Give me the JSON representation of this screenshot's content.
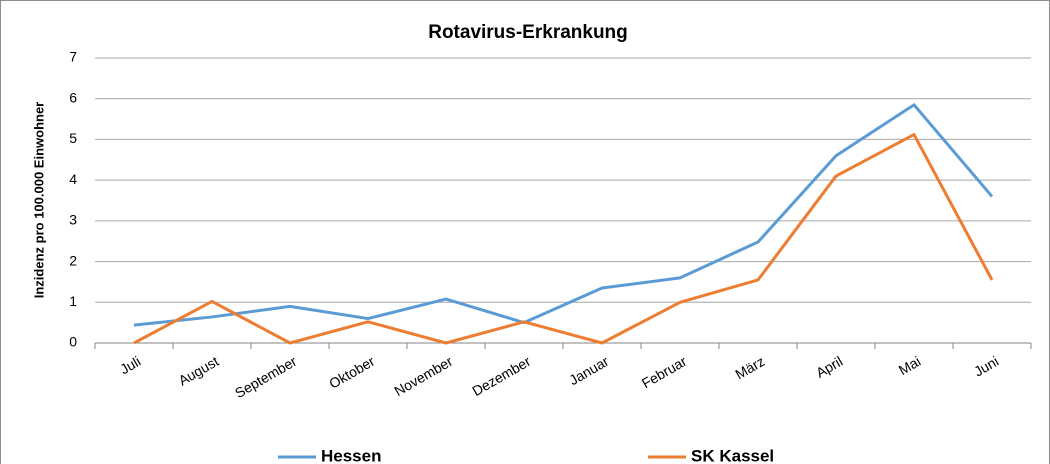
{
  "chart_data": {
    "type": "line",
    "title": "Rotavirus-Erkrankung",
    "ylabel": "Inzidenz pro 100.000 Einwohner",
    "categories": [
      "Juli",
      "August",
      "September",
      "Oktober",
      "November",
      "Dezember",
      "Januar",
      "Februar",
      "März",
      "April",
      "Mai",
      "Juni"
    ],
    "series": [
      {
        "name": "Hessen",
        "color": "#5b9bd5",
        "values": [
          0.44,
          0.64,
          0.9,
          0.6,
          1.08,
          0.5,
          1.35,
          1.6,
          2.48,
          4.6,
          5.85,
          3.6
        ]
      },
      {
        "name": "SK Kassel",
        "color": "#ed7d31",
        "values": [
          0,
          1.02,
          0,
          0.52,
          0,
          0.52,
          0,
          1.0,
          1.55,
          4.1,
          5.12,
          1.55
        ]
      }
    ],
    "ylim": [
      0,
      7
    ],
    "yticks": [
      0,
      1,
      2,
      3,
      4,
      5,
      6,
      7
    ],
    "grid": true,
    "legend": "bottom"
  }
}
